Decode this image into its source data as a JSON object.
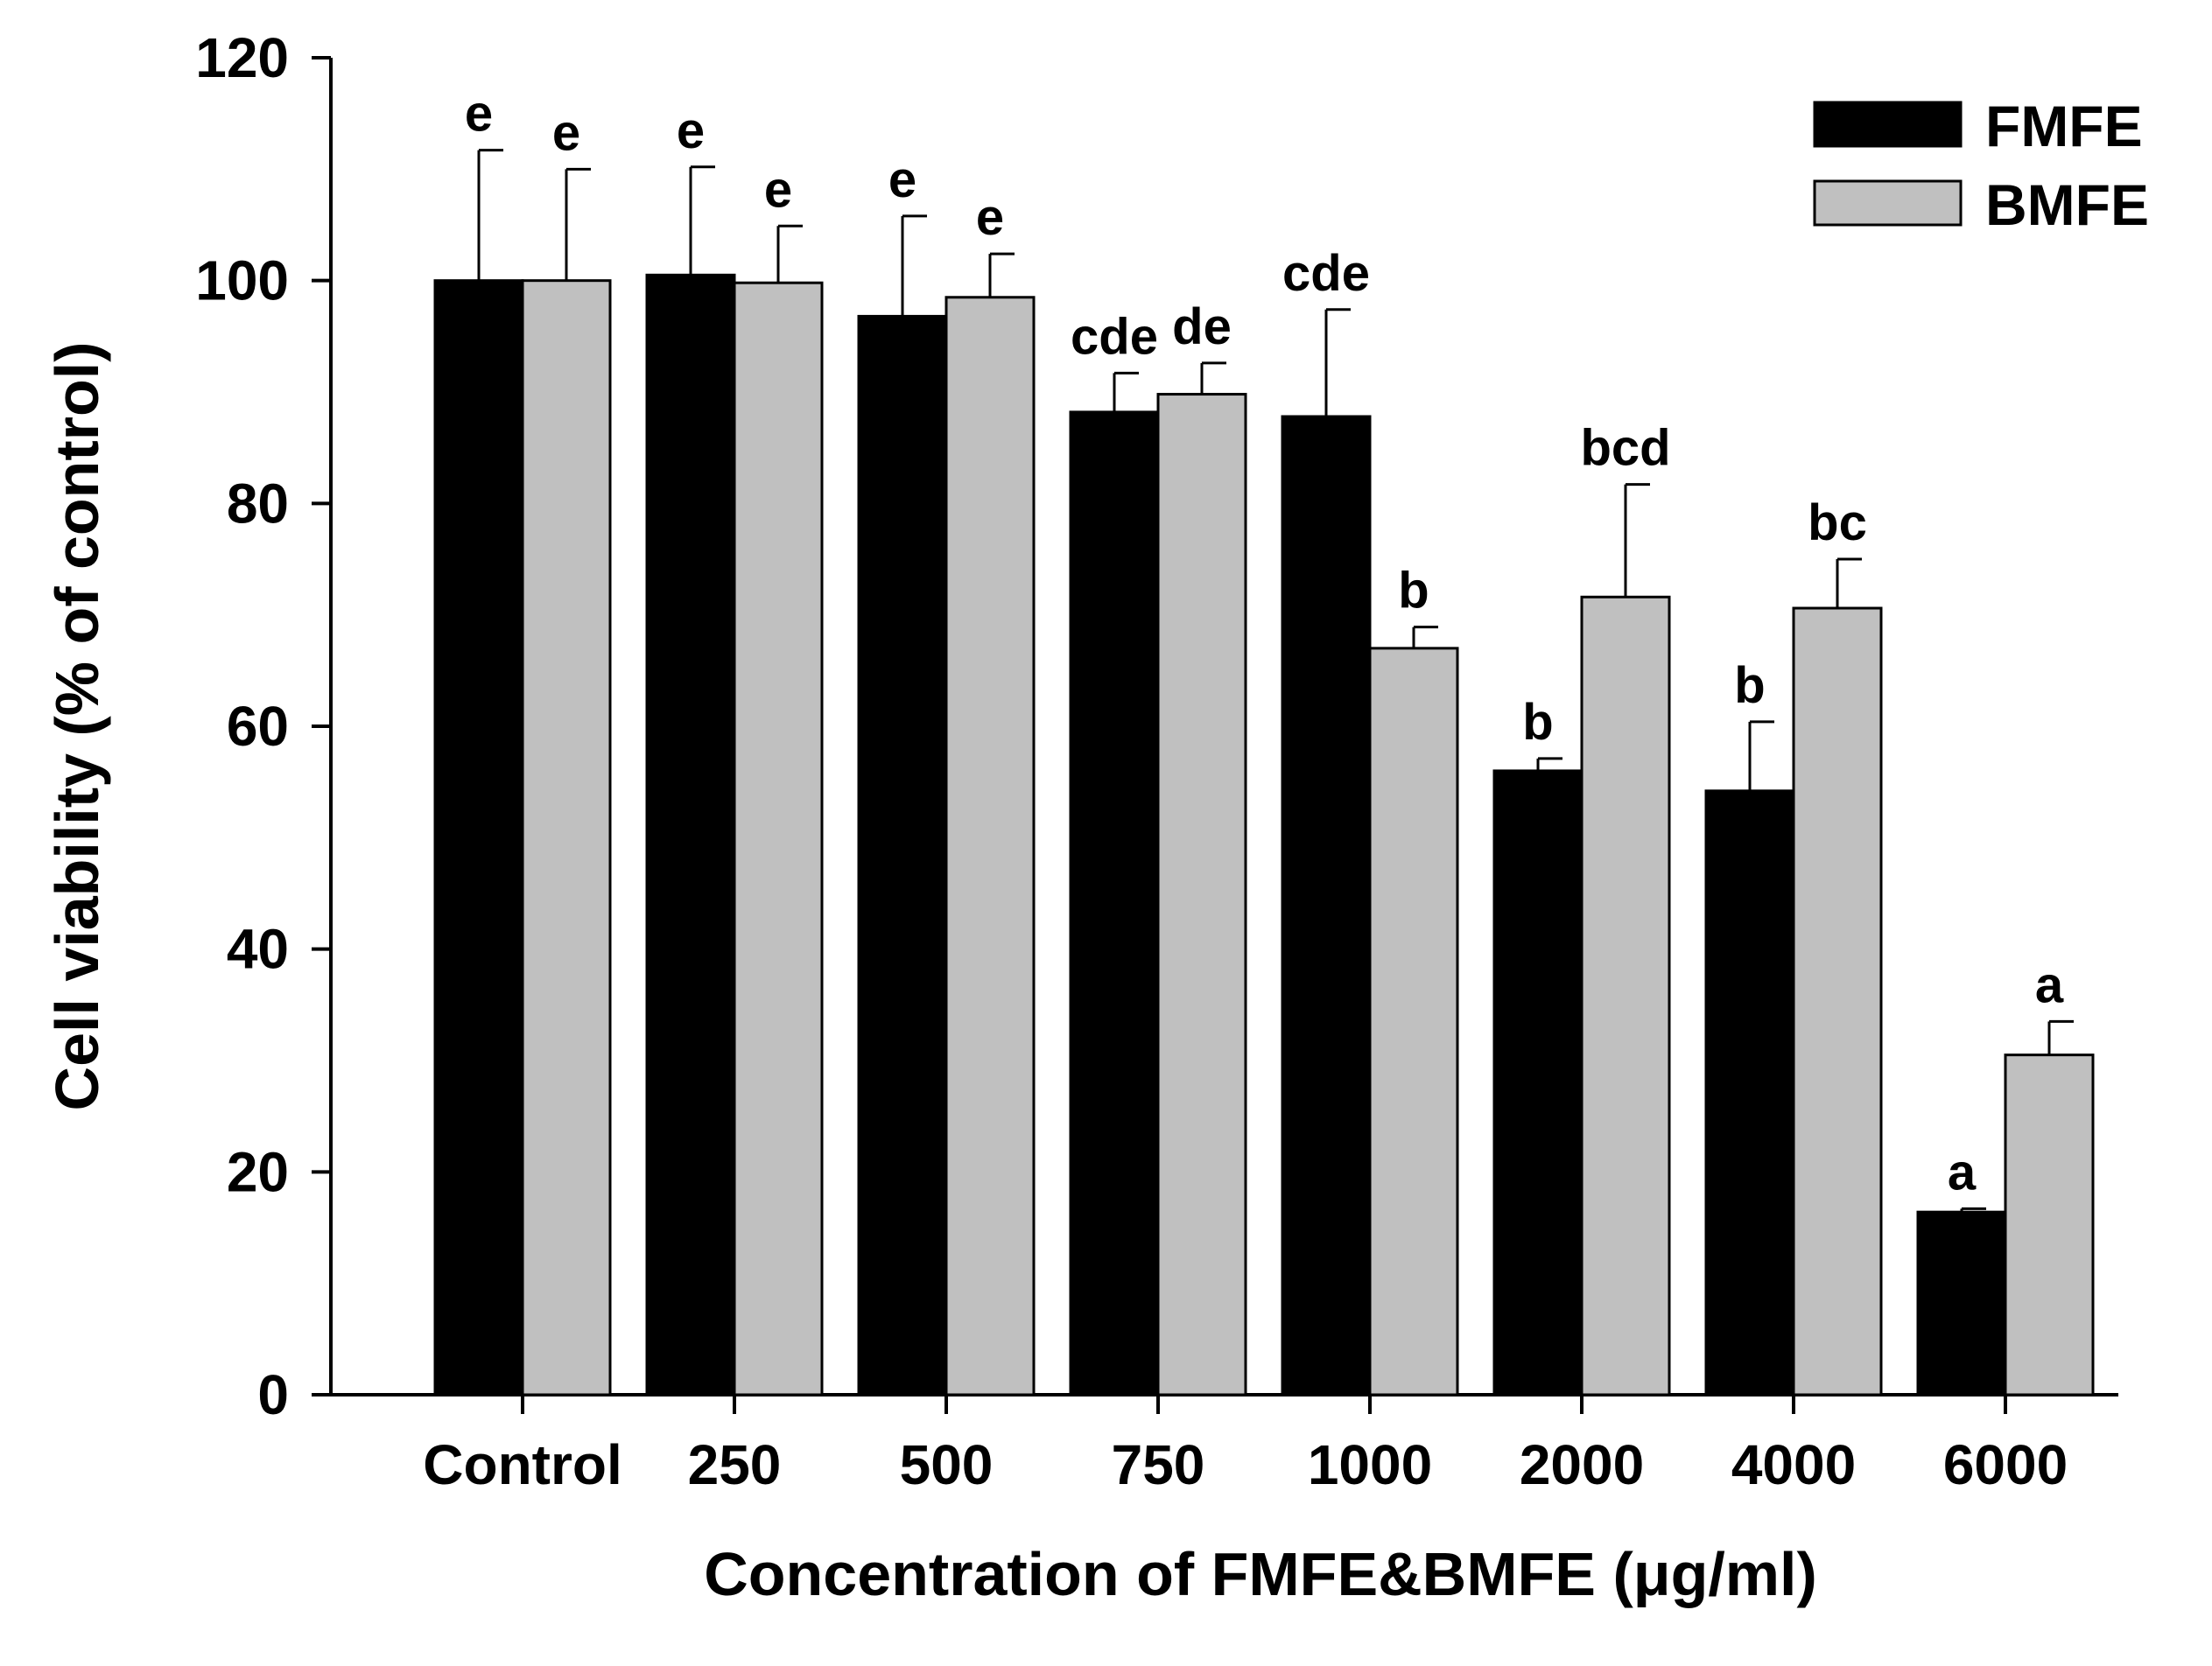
{
  "chart_data": {
    "type": "bar",
    "title": "",
    "xlabel": "Concentration of FMFE&BMFE (μg/ml)",
    "ylabel": "Cell viability (% of control)",
    "ylim": [
      0,
      120
    ],
    "yticks": [
      0,
      20,
      40,
      60,
      80,
      100,
      120
    ],
    "categories": [
      "Control",
      "250",
      "500",
      "750",
      "1000",
      "2000",
      "4000",
      "6000"
    ],
    "legend_position": "top-right",
    "series": [
      {
        "name": "FMFE",
        "color": "#000000",
        "values": [
          100,
          100.5,
          96.8,
          88.2,
          87.8,
          56.0,
          54.2,
          16.4
        ],
        "errors": [
          11.7,
          9.7,
          9.0,
          3.5,
          9.6,
          1.1,
          6.2,
          0.3
        ],
        "labels": [
          "e",
          "e",
          "e",
          "cde",
          "cde",
          "b",
          "b",
          "a"
        ]
      },
      {
        "name": "BMFE",
        "color": "#c0c0c0",
        "values": [
          100,
          99.8,
          98.5,
          89.8,
          67.0,
          71.6,
          70.6,
          30.5
        ],
        "errors": [
          10.0,
          5.1,
          3.9,
          2.8,
          1.9,
          10.1,
          4.4,
          3.0
        ],
        "labels": [
          "e",
          "e",
          "e",
          "de",
          "b",
          "bcd",
          "bc",
          "a"
        ]
      }
    ]
  }
}
